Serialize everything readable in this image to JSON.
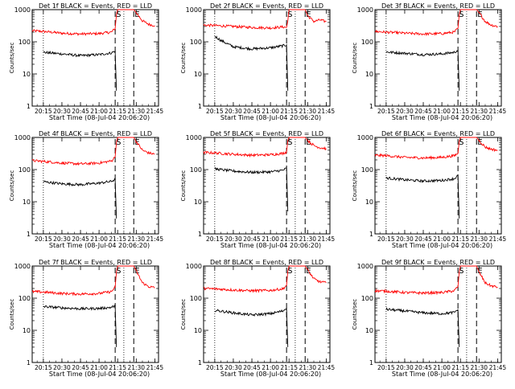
{
  "chart_data": [
    {
      "type": "line",
      "title": "Det 1f BLACK = Events, RED = LLD",
      "xlabel": "Start Time (08-Jul-04 20:06:20)",
      "ylabel": "Counts/sec",
      "yscale": "log",
      "ylim": [
        1,
        1000
      ],
      "ytick_labels": [
        "1",
        "10",
        "100",
        "1000"
      ],
      "xlim": [
        "20:06",
        "21:48"
      ],
      "xtick_labels": [
        "20:15",
        "20:30",
        "20:45",
        "21:00",
        "21:15",
        "21:30",
        "21:45"
      ],
      "markers": [
        "S",
        "E"
      ],
      "series": [
        {
          "color": "#ff0000",
          "x": [
            "20:06",
            "20:15",
            "20:30",
            "20:45",
            "21:00",
            "21:10",
            "21:13",
            "21:14",
            "21:15",
            "21:28",
            "21:30",
            "21:35",
            "21:40",
            "21:45"
          ],
          "values": [
            220,
            210,
            185,
            175,
            180,
            200,
            260,
            700,
            1000,
            1000,
            800,
            450,
            350,
            320
          ]
        },
        {
          "color": "#000000",
          "x": [
            "20:15",
            "20:30",
            "20:45",
            "21:00",
            "21:10",
            "21:13",
            "21:14"
          ],
          "values": [
            47,
            42,
            37,
            40,
            45,
            52,
            3
          ]
        }
      ]
    },
    {
      "type": "line",
      "title": "Det 2f BLACK = Events, RED = LLD",
      "xlabel": "Start Time (08-Jul-04 20:06:20)",
      "ylabel": "Counts/sec",
      "yscale": "log",
      "ylim": [
        1,
        1000
      ],
      "ytick_labels": [
        "1",
        "10",
        "100",
        "1000"
      ],
      "xlim": [
        "20:06",
        "21:48"
      ],
      "xtick_labels": [
        "20:15",
        "20:30",
        "20:45",
        "21:00",
        "21:15",
        "21:30",
        "21:45"
      ],
      "markers": [
        "S",
        "E"
      ],
      "series": [
        {
          "color": "#ff0000",
          "x": [
            "20:06",
            "20:15",
            "20:30",
            "20:45",
            "21:00",
            "21:10",
            "21:13",
            "21:14",
            "21:15",
            "21:28",
            "21:30",
            "21:35",
            "21:40",
            "21:45"
          ],
          "values": [
            330,
            320,
            300,
            280,
            270,
            290,
            280,
            450,
            1000,
            1000,
            650,
            430,
            480,
            420
          ]
        },
        {
          "color": "#000000",
          "x": [
            "20:15",
            "20:20",
            "20:30",
            "20:45",
            "21:00",
            "21:10",
            "21:13",
            "21:14"
          ],
          "values": [
            150,
            110,
            70,
            60,
            65,
            75,
            80,
            3
          ]
        }
      ]
    },
    {
      "type": "line",
      "title": "Det 3f BLACK = Events, RED = LLD",
      "xlabel": "Start Time (08-Jul-04 20:06:20)",
      "ylabel": "Counts/sec",
      "yscale": "log",
      "ylim": [
        1,
        1000
      ],
      "ytick_labels": [
        "1",
        "10",
        "100",
        "1000"
      ],
      "xlim": [
        "20:06",
        "21:48"
      ],
      "xtick_labels": [
        "20:15",
        "20:30",
        "20:45",
        "21:00",
        "21:15",
        "21:30",
        "21:45"
      ],
      "markers": [
        "S",
        "E"
      ],
      "series": [
        {
          "color": "#ff0000",
          "x": [
            "20:06",
            "20:15",
            "20:30",
            "20:45",
            "21:00",
            "21:10",
            "21:13",
            "21:14",
            "21:15",
            "21:28",
            "21:30",
            "21:35",
            "21:40",
            "21:45"
          ],
          "values": [
            210,
            200,
            185,
            175,
            180,
            200,
            260,
            700,
            1000,
            1000,
            800,
            430,
            330,
            300
          ]
        },
        {
          "color": "#000000",
          "x": [
            "20:15",
            "20:30",
            "20:45",
            "21:00",
            "21:10",
            "21:13",
            "21:14"
          ],
          "values": [
            48,
            44,
            40,
            42,
            47,
            55,
            3
          ]
        }
      ]
    },
    {
      "type": "line",
      "title": "Det 4f BLACK = Events, RED = LLD",
      "xlabel": "Start Time (08-Jul-04 20:06:20)",
      "ylabel": "Counts/sec",
      "yscale": "log",
      "ylim": [
        1,
        1000
      ],
      "ytick_labels": [
        "1",
        "10",
        "100",
        "1000"
      ],
      "xlim": [
        "20:06",
        "21:48"
      ],
      "xtick_labels": [
        "20:15",
        "20:30",
        "20:45",
        "21:00",
        "21:15",
        "21:30",
        "21:45"
      ],
      "markers": [
        "S",
        "E"
      ],
      "series": [
        {
          "color": "#ff0000",
          "x": [
            "20:06",
            "20:15",
            "20:30",
            "20:45",
            "21:00",
            "21:10",
            "21:13",
            "21:14",
            "21:15",
            "21:28",
            "21:30",
            "21:35",
            "21:40",
            "21:45"
          ],
          "values": [
            190,
            180,
            160,
            150,
            160,
            185,
            250,
            700,
            1000,
            1000,
            750,
            400,
            330,
            300
          ]
        },
        {
          "color": "#000000",
          "x": [
            "20:15",
            "20:30",
            "20:45",
            "21:00",
            "21:10",
            "21:13",
            "21:14"
          ],
          "values": [
            42,
            36,
            34,
            38,
            43,
            50,
            3
          ]
        }
      ]
    },
    {
      "type": "line",
      "title": "Det 5f BLACK = Events, RED = LLD",
      "xlabel": "Start Time (08-Jul-04 20:06:20)",
      "ylabel": "Counts/sec",
      "yscale": "log",
      "ylim": [
        1,
        1000
      ],
      "ytick_labels": [
        "1",
        "10",
        "100",
        "1000"
      ],
      "xlim": [
        "20:06",
        "21:48"
      ],
      "xtick_labels": [
        "20:15",
        "20:30",
        "20:45",
        "21:00",
        "21:15",
        "21:30",
        "21:45"
      ],
      "markers": [
        "S",
        "E"
      ],
      "series": [
        {
          "color": "#ff0000",
          "x": [
            "20:06",
            "20:15",
            "20:30",
            "20:45",
            "21:00",
            "21:10",
            "21:13",
            "21:14",
            "21:15",
            "21:28",
            "21:30",
            "21:35",
            "21:40",
            "21:45"
          ],
          "values": [
            340,
            330,
            300,
            280,
            290,
            320,
            350,
            800,
            1000,
            1000,
            800,
            560,
            480,
            450
          ]
        },
        {
          "color": "#000000",
          "x": [
            "20:15",
            "20:30",
            "20:45",
            "21:00",
            "21:10",
            "21:13",
            "21:14"
          ],
          "values": [
            105,
            90,
            82,
            85,
            95,
            110,
            5
          ]
        }
      ]
    },
    {
      "type": "line",
      "title": "Det 6f BLACK = Events, RED = LLD",
      "xlabel": "Start Time (08-Jul-04 20:06:20)",
      "ylabel": "Counts/sec",
      "yscale": "log",
      "ylim": [
        1,
        1000
      ],
      "ytick_labels": [
        "1",
        "10",
        "100",
        "1000"
      ],
      "xlim": [
        "20:06",
        "21:48"
      ],
      "xtick_labels": [
        "20:15",
        "20:30",
        "20:45",
        "21:00",
        "21:15",
        "21:30",
        "21:45"
      ],
      "markers": [
        "S",
        "E"
      ],
      "series": [
        {
          "color": "#ff0000",
          "x": [
            "20:06",
            "20:15",
            "20:30",
            "20:45",
            "21:00",
            "21:10",
            "21:13",
            "21:14",
            "21:15",
            "21:28",
            "21:30",
            "21:35",
            "21:40",
            "21:45"
          ],
          "values": [
            280,
            270,
            240,
            230,
            240,
            270,
            320,
            750,
            1000,
            1000,
            800,
            500,
            430,
            400
          ]
        },
        {
          "color": "#000000",
          "x": [
            "20:15",
            "20:30",
            "20:45",
            "21:00",
            "21:10",
            "21:13",
            "21:14"
          ],
          "values": [
            55,
            48,
            44,
            46,
            52,
            65,
            3
          ]
        }
      ]
    },
    {
      "type": "line",
      "title": "Det 7f BLACK = Events, RED = LLD",
      "xlabel": "Start Time (08-Jul-04 20:06:20)",
      "ylabel": "Counts/sec",
      "yscale": "log",
      "ylim": [
        1,
        1000
      ],
      "ytick_labels": [
        "1",
        "10",
        "100",
        "1000"
      ],
      "xlim": [
        "20:06",
        "21:48"
      ],
      "xtick_labels": [
        "20:15",
        "20:30",
        "20:45",
        "21:00",
        "21:15",
        "21:30",
        "21:45"
      ],
      "markers": [
        "S",
        "E"
      ],
      "series": [
        {
          "color": "#ff0000",
          "x": [
            "20:06",
            "20:15",
            "20:30",
            "20:45",
            "21:00",
            "21:10",
            "21:13",
            "21:14",
            "21:15",
            "21:28",
            "21:30",
            "21:35",
            "21:40",
            "21:45"
          ],
          "values": [
            160,
            155,
            140,
            135,
            140,
            160,
            220,
            650,
            1000,
            1000,
            700,
            300,
            230,
            210
          ]
        },
        {
          "color": "#000000",
          "x": [
            "20:15",
            "20:30",
            "20:45",
            "21:00",
            "21:10",
            "21:13",
            "21:14"
          ],
          "values": [
            55,
            50,
            47,
            48,
            52,
            58,
            3
          ]
        }
      ]
    },
    {
      "type": "line",
      "title": "Det 8f BLACK = Events, RED = LLD",
      "xlabel": "Start Time (08-Jul-04 20:06:20)",
      "ylabel": "Counts/sec",
      "yscale": "log",
      "ylim": [
        1,
        1000
      ],
      "ytick_labels": [
        "1",
        "10",
        "100",
        "1000"
      ],
      "xlim": [
        "20:06",
        "21:48"
      ],
      "xtick_labels": [
        "20:15",
        "20:30",
        "20:45",
        "21:00",
        "21:15",
        "21:30",
        "21:45"
      ],
      "markers": [
        "S",
        "E"
      ],
      "series": [
        {
          "color": "#ff0000",
          "x": [
            "20:06",
            "20:15",
            "20:30",
            "20:45",
            "21:00",
            "21:10",
            "21:13",
            "21:14",
            "21:15",
            "21:28",
            "21:30",
            "21:35",
            "21:40",
            "21:45"
          ],
          "values": [
            200,
            195,
            180,
            170,
            175,
            195,
            250,
            700,
            1000,
            1000,
            750,
            400,
            320,
            300
          ]
        },
        {
          "color": "#000000",
          "x": [
            "20:15",
            "20:30",
            "20:45",
            "21:00",
            "21:10",
            "21:13",
            "21:14"
          ],
          "values": [
            42,
            35,
            30,
            33,
            40,
            50,
            3
          ]
        }
      ]
    },
    {
      "type": "line",
      "title": "Det 9f BLACK = Events, RED = LLD",
      "xlabel": "Start Time (08-Jul-04 20:06:20)",
      "ylabel": "Counts/sec",
      "yscale": "log",
      "ylim": [
        1,
        1000
      ],
      "ytick_labels": [
        "1",
        "10",
        "100",
        "1000"
      ],
      "xlim": [
        "20:06",
        "21:48"
      ],
      "xtick_labels": [
        "20:15",
        "20:30",
        "20:45",
        "21:00",
        "21:15",
        "21:30",
        "21:45"
      ],
      "markers": [
        "S",
        "E"
      ],
      "series": [
        {
          "color": "#ff0000",
          "x": [
            "20:06",
            "20:15",
            "20:30",
            "20:45",
            "21:00",
            "21:10",
            "21:13",
            "21:14",
            "21:15",
            "21:28",
            "21:30",
            "21:35",
            "21:40",
            "21:45"
          ],
          "values": [
            170,
            165,
            150,
            145,
            150,
            170,
            230,
            650,
            1000,
            1000,
            650,
            300,
            240,
            220
          ]
        },
        {
          "color": "#000000",
          "x": [
            "20:15",
            "20:30",
            "20:45",
            "21:00",
            "21:10",
            "21:13",
            "21:14"
          ],
          "values": [
            45,
            40,
            35,
            33,
            36,
            45,
            3
          ]
        }
      ]
    }
  ]
}
